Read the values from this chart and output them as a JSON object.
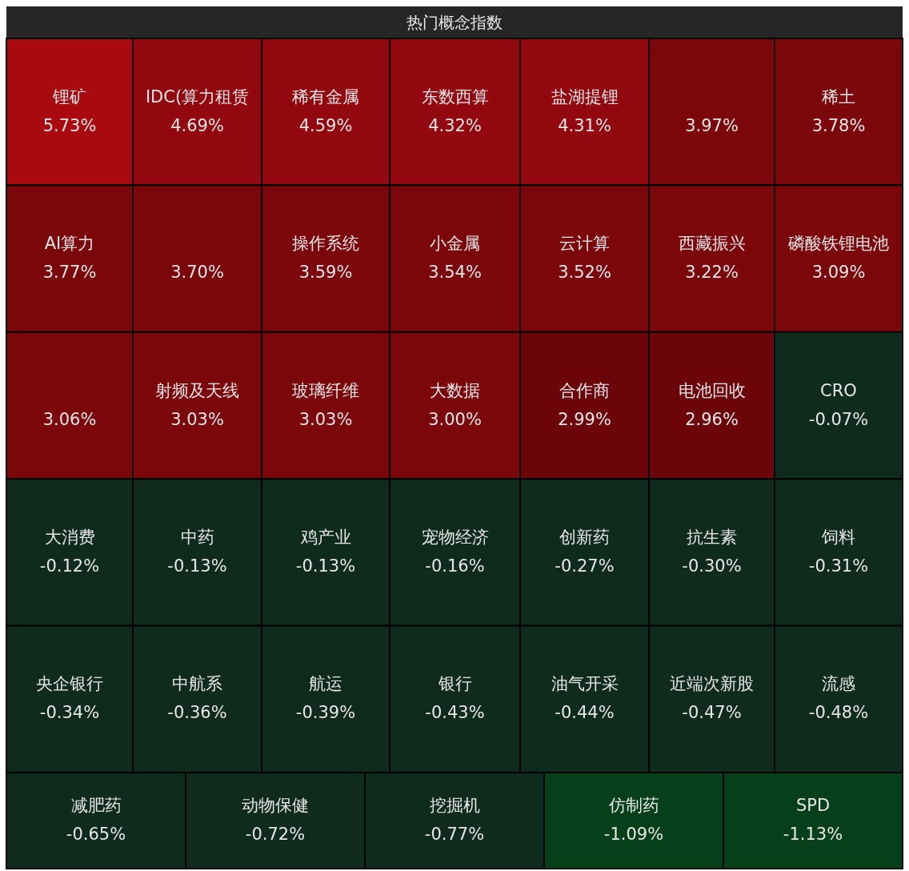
{
  "chart_data": {
    "type": "other",
    "title": "热门概念指数",
    "categories": [
      "锂矿",
      "IDC(算力租赁",
      "稀有金属",
      "东数西算",
      "盐湖提锂",
      null,
      "稀土",
      "AI算力",
      null,
      "操作系统",
      "小金属",
      "云计算",
      "西藏振兴",
      "磷酸铁锂电池",
      null,
      "射频及天线",
      "玻璃纤维",
      "大数据",
      "合作商",
      "电池回收",
      "CRO",
      "大消费",
      "中药",
      "鸡产业",
      "宠物经济",
      "创新药",
      "抗生素",
      "饲料",
      "央企银行",
      "中航系",
      "航运",
      "银行",
      "油气开采",
      "近端次新股",
      "流感",
      "减肥药",
      "动物保健",
      "挖掘机",
      "仿制药",
      "SPD"
    ],
    "values": [
      5.73,
      4.69,
      4.59,
      4.32,
      4.31,
      3.97,
      3.78,
      3.77,
      3.7,
      3.59,
      3.54,
      3.52,
      3.22,
      3.09,
      3.06,
      3.03,
      3.03,
      3.0,
      2.99,
      2.96,
      -0.07,
      -0.12,
      -0.13,
      -0.13,
      -0.16,
      -0.27,
      -0.3,
      -0.31,
      -0.34,
      -0.36,
      -0.39,
      -0.43,
      -0.44,
      -0.47,
      -0.48,
      -0.65,
      -0.72,
      -0.77,
      -1.09,
      -1.13
    ],
    "value_labels": [
      "5.73%",
      "4.69%",
      "4.59%",
      "4.32%",
      "4.31%",
      "3.97%",
      "3.78%",
      "3.77%",
      "3.70%",
      "3.59%",
      "3.54%",
      "3.52%",
      "3.22%",
      "3.09%",
      "3.06%",
      "3.03%",
      "3.03%",
      "3.00%",
      "2.99%",
      "2.96%",
      "-0.07%",
      "-0.12%",
      "-0.13%",
      "-0.13%",
      "-0.16%",
      "-0.27%",
      "-0.30%",
      "-0.31%",
      "-0.34%",
      "-0.36%",
      "-0.39%",
      "-0.43%",
      "-0.44%",
      "-0.47%",
      "-0.48%",
      "-0.65%",
      "-0.72%",
      "-0.77%",
      "-1.09%",
      "-1.13%"
    ],
    "colors": [
      "#a80a10",
      "#92080e",
      "#92080e",
      "#92080e",
      "#92080e",
      "#7c070b",
      "#7c070b",
      "#7c070b",
      "#7c070b",
      "#7c070b",
      "#7c070b",
      "#7c070b",
      "#7c070b",
      "#7c070b",
      "#7c070b",
      "#7c070b",
      "#7c070b",
      "#7c070b",
      "#6c050a",
      "#6c050a",
      "#0f2b1e",
      "#0f2b1e",
      "#0f2b1e",
      "#0f2b1e",
      "#0f2b1e",
      "#0f2b1e",
      "#0f2b1e",
      "#0f2b1e",
      "#0f2b1e",
      "#0f2b1e",
      "#0f2b1e",
      "#0f2b1e",
      "#0f2b1e",
      "#0f2b1e",
      "#0f2b1e",
      "#0f2b1e",
      "#0f2b1e",
      "#0f2b1e",
      "#06401a",
      "#06401a"
    ]
  }
}
